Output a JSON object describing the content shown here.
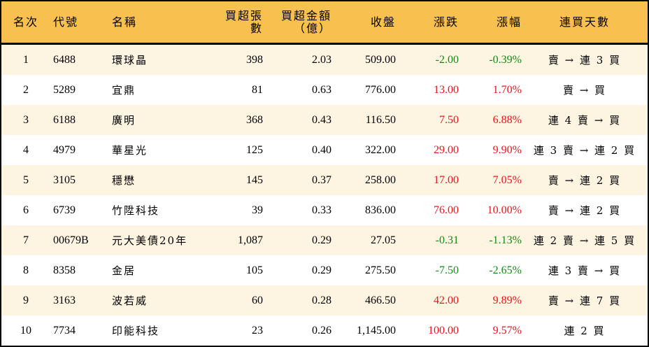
{
  "headers": [
    "名次",
    "代號",
    "名稱",
    "買超張數",
    "買超金額\n（億）",
    "收盤",
    "漲跌",
    "漲幅",
    "連買天數"
  ],
  "rows": [
    [
      "1",
      "6488",
      "環球晶",
      "398",
      "2.03",
      "509.00",
      "-2.00",
      "-0.39%",
      "賣 → 連 3 買",
      "down"
    ],
    [
      "2",
      "5289",
      "宜鼎",
      "81",
      "0.63",
      "776.00",
      "13.00",
      "1.70%",
      "賣 → 買",
      "up"
    ],
    [
      "3",
      "6188",
      "廣明",
      "368",
      "0.43",
      "116.50",
      "7.50",
      "6.88%",
      "連 4 賣 → 買",
      "up"
    ],
    [
      "4",
      "4979",
      "華星光",
      "125",
      "0.40",
      "322.00",
      "29.00",
      "9.90%",
      "連 3 賣 → 連 2 買",
      "up"
    ],
    [
      "5",
      "3105",
      "穩懋",
      "145",
      "0.37",
      "258.00",
      "17.00",
      "7.05%",
      "賣 → 連 2 買",
      "up"
    ],
    [
      "6",
      "6739",
      "竹陞科技",
      "39",
      "0.33",
      "836.00",
      "76.00",
      "10.00%",
      "賣 → 連 2 買",
      "up"
    ],
    [
      "7",
      "00679B",
      "元大美債20年",
      "1,087",
      "0.29",
      "27.05",
      "-0.31",
      "-1.13%",
      "連 2 賣 → 連 5 買",
      "down"
    ],
    [
      "8",
      "8358",
      "金居",
      "105",
      "0.29",
      "275.50",
      "-7.50",
      "-2.65%",
      "連 3 賣 → 買",
      "down"
    ],
    [
      "9",
      "3163",
      "波若威",
      "60",
      "0.28",
      "466.50",
      "42.00",
      "9.89%",
      "賣 → 連 7 買",
      "up"
    ],
    [
      "10",
      "7734",
      "印能科技",
      "23",
      "0.26",
      "1,145.00",
      "100.00",
      "9.57%",
      "連 2 買",
      "up"
    ]
  ],
  "colors": {
    "header": "#F8C04F",
    "odd_row": "#FDF4E1",
    "up": "#E8141A",
    "down": "#138A13"
  }
}
